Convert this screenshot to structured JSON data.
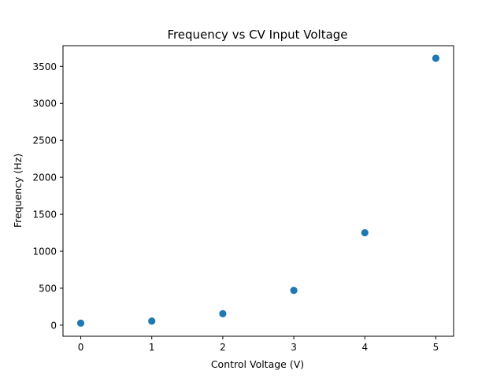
{
  "chart_data": {
    "type": "scatter",
    "title": "Frequency vs CV Input Voltage",
    "xlabel": "Control Voltage (V)",
    "ylabel": "Frequency (Hz)",
    "x": [
      0,
      1,
      2,
      3,
      4,
      5
    ],
    "y": [
      27.5,
      55,
      155,
      470,
      1250,
      3610
    ],
    "xlim": [
      -0.25,
      5.25
    ],
    "ylim": [
      -150,
      3780
    ],
    "xticks": [
      "0",
      "1",
      "2",
      "3",
      "4",
      "5"
    ],
    "yticks": [
      "0",
      "500",
      "1000",
      "1500",
      "2000",
      "2500",
      "3000",
      "3500"
    ],
    "grid": false,
    "legend": false,
    "marker_color": "#1f77b4"
  }
}
